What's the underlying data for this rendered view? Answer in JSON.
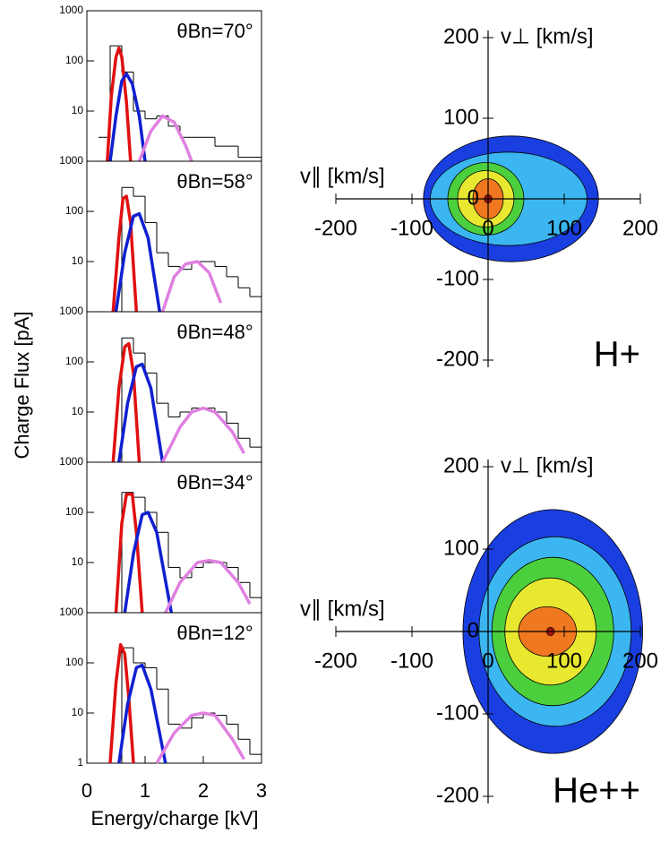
{
  "chart_data": [
    {
      "type": "line",
      "title": "θBn=70°",
      "ylabel": "Charge Flux [pA]",
      "log_y": true,
      "xlim": [
        0,
        3
      ],
      "ylim": [
        1,
        1000
      ],
      "yticks": [
        10,
        100,
        1000
      ],
      "series": [
        {
          "style": "step",
          "color": "#000000",
          "bins": [
            0.2,
            0.4,
            0.6,
            0.8,
            1.0,
            1.2,
            1.4,
            1.6,
            1.8,
            2.0,
            2.2,
            2.4,
            2.6,
            2.8,
            3.0
          ],
          "values": [
            3,
            200,
            60,
            10,
            7,
            8,
            5,
            3,
            3,
            3,
            2,
            2,
            1.2,
            1.2
          ]
        },
        {
          "color": "#e01010",
          "x": [
            0.35,
            0.42,
            0.5,
            0.55,
            0.6,
            0.68,
            0.75
          ],
          "values": [
            1,
            20,
            120,
            180,
            120,
            15,
            1
          ]
        },
        {
          "color": "#1020d0",
          "x": [
            0.4,
            0.5,
            0.6,
            0.68,
            0.78,
            0.9,
            1.0
          ],
          "values": [
            1,
            8,
            40,
            55,
            35,
            8,
            1
          ]
        },
        {
          "color": "#e080e0",
          "x": [
            0.9,
            1.1,
            1.3,
            1.5,
            1.7,
            1.8
          ],
          "values": [
            1,
            4,
            8,
            6,
            2,
            1
          ]
        }
      ]
    },
    {
      "type": "line",
      "title": "θBn=58°",
      "log_y": true,
      "xlim": [
        0,
        3
      ],
      "ylim": [
        1,
        1000
      ],
      "yticks": [
        10,
        100,
        1000
      ],
      "series": [
        {
          "style": "step",
          "color": "#000000",
          "bins": [
            0.2,
            0.4,
            0.6,
            0.8,
            1.0,
            1.2,
            1.4,
            1.6,
            1.8,
            2.0,
            2.2,
            2.4,
            2.6,
            2.8,
            3.0
          ],
          "values": [
            1,
            1,
            300,
            200,
            60,
            15,
            8,
            7,
            10,
            10,
            8,
            5,
            3,
            2
          ]
        },
        {
          "color": "#e01010",
          "x": [
            0.45,
            0.55,
            0.62,
            0.68,
            0.75,
            0.85
          ],
          "values": [
            1,
            30,
            180,
            200,
            60,
            1
          ]
        },
        {
          "color": "#1020d0",
          "x": [
            0.5,
            0.65,
            0.8,
            0.9,
            1.05,
            1.25
          ],
          "values": [
            1,
            15,
            80,
            90,
            30,
            1
          ]
        },
        {
          "color": "#e080e0",
          "x": [
            1.3,
            1.5,
            1.7,
            1.9,
            2.1,
            2.3
          ],
          "values": [
            1,
            5,
            9,
            10,
            6,
            1.5
          ]
        }
      ]
    },
    {
      "type": "line",
      "title": "θBn=48°",
      "log_y": true,
      "xlim": [
        0,
        3
      ],
      "ylim": [
        1,
        1000
      ],
      "yticks": [
        10,
        100,
        1000
      ],
      "series": [
        {
          "style": "step",
          "color": "#000000",
          "bins": [
            0.2,
            0.4,
            0.6,
            0.8,
            1.0,
            1.2,
            1.4,
            1.6,
            1.8,
            2.0,
            2.2,
            2.4,
            2.6,
            2.8,
            3.0
          ],
          "values": [
            1,
            1,
            300,
            150,
            60,
            15,
            8,
            10,
            12,
            12,
            10,
            6,
            3,
            2
          ]
        },
        {
          "color": "#e01010",
          "x": [
            0.45,
            0.55,
            0.65,
            0.72,
            0.8,
            0.9
          ],
          "values": [
            1,
            30,
            200,
            230,
            60,
            1
          ]
        },
        {
          "color": "#1020d0",
          "x": [
            0.55,
            0.7,
            0.85,
            0.95,
            1.1,
            1.3
          ],
          "values": [
            1,
            15,
            80,
            90,
            30,
            1
          ]
        },
        {
          "color": "#e080e0",
          "x": [
            1.3,
            1.6,
            1.8,
            2.0,
            2.2,
            2.5,
            2.7
          ],
          "values": [
            1,
            5,
            10,
            12,
            10,
            4,
            1.5
          ]
        }
      ]
    },
    {
      "type": "line",
      "title": "θBn=34°",
      "log_y": true,
      "xlim": [
        0,
        3
      ],
      "ylim": [
        1,
        1000
      ],
      "yticks": [
        10,
        100,
        1000
      ],
      "series": [
        {
          "style": "step",
          "color": "#000000",
          "bins": [
            0.2,
            0.4,
            0.6,
            0.8,
            1.0,
            1.2,
            1.4,
            1.6,
            1.8,
            2.0,
            2.2,
            2.4,
            2.6,
            2.8,
            3.0
          ],
          "values": [
            1,
            1,
            250,
            200,
            100,
            40,
            8,
            5,
            8,
            10,
            10,
            8,
            4,
            2
          ]
        },
        {
          "color": "#e01010",
          "x": [
            0.5,
            0.6,
            0.68,
            0.78,
            0.85,
            0.95
          ],
          "values": [
            1,
            60,
            230,
            230,
            40,
            1
          ]
        },
        {
          "color": "#1020d0",
          "x": [
            0.65,
            0.8,
            0.95,
            1.05,
            1.2,
            1.45
          ],
          "values": [
            1,
            15,
            90,
            100,
            40,
            1
          ]
        },
        {
          "color": "#e080e0",
          "x": [
            1.35,
            1.6,
            1.9,
            2.1,
            2.3,
            2.6,
            2.8
          ],
          "values": [
            1,
            4,
            10,
            11,
            10,
            4,
            1.5
          ]
        }
      ]
    },
    {
      "type": "line",
      "title": "θBn=12°",
      "xlabel": "Energy/charge [kV]",
      "log_y": true,
      "xlim": [
        0,
        3
      ],
      "ylim": [
        1,
        1000
      ],
      "yticks": [
        1,
        10,
        100,
        1000
      ],
      "xticks": [
        0,
        1,
        2,
        3
      ],
      "series": [
        {
          "style": "step",
          "color": "#000000",
          "bins": [
            0.2,
            0.4,
            0.6,
            0.8,
            1.0,
            1.2,
            1.4,
            1.6,
            1.8,
            2.0,
            2.2,
            2.4,
            2.6,
            2.8,
            3.0
          ],
          "values": [
            1,
            1,
            200,
            100,
            80,
            30,
            6,
            5,
            8,
            10,
            9,
            6,
            3,
            1.5
          ]
        },
        {
          "color": "#e01010",
          "x": [
            0.4,
            0.5,
            0.58,
            0.65,
            0.72,
            0.8
          ],
          "values": [
            1,
            40,
            230,
            150,
            20,
            1
          ]
        },
        {
          "color": "#1020d0",
          "x": [
            0.55,
            0.7,
            0.85,
            0.95,
            1.1,
            1.35
          ],
          "values": [
            1,
            15,
            80,
            90,
            30,
            1
          ]
        },
        {
          "color": "#e080e0",
          "x": [
            1.2,
            1.5,
            1.8,
            2.0,
            2.2,
            2.5,
            2.7
          ],
          "values": [
            1,
            4,
            9,
            10,
            9,
            3,
            1.2
          ]
        }
      ]
    },
    {
      "type": "contour",
      "title": "H+",
      "xlabel": "v∥ [km/s]",
      "ylabel": "v⊥ [km/s]",
      "xlim": [
        -200,
        200
      ],
      "ylim": [
        -200,
        200
      ],
      "xticks": [
        -200,
        -100,
        0,
        100,
        200
      ],
      "yticks": [
        -200,
        -100,
        0,
        100,
        200
      ],
      "levels": [
        {
          "color": "#1a3fe0",
          "center": [
            30,
            0
          ],
          "radius": [
            115,
            78
          ]
        },
        {
          "color": "#3cb6f0",
          "center": [
            27,
            0
          ],
          "radius": [
            103,
            58
          ]
        },
        {
          "color": "#4ccf3c",
          "center": [
            -3,
            0
          ],
          "radius": [
            50,
            45
          ]
        },
        {
          "color": "#e8e830",
          "center": [
            -3,
            0
          ],
          "radius": [
            37,
            35
          ]
        },
        {
          "color": "#f07820",
          "center": [
            0,
            0
          ],
          "radius": [
            20,
            25
          ]
        },
        {
          "color": "#b01010",
          "center": [
            0,
            0
          ],
          "radius": [
            5,
            5
          ]
        }
      ]
    },
    {
      "type": "contour",
      "title": "He++",
      "xlabel": "v∥ [km/s]",
      "ylabel": "v⊥ [km/s]",
      "xlim": [
        -200,
        200
      ],
      "ylim": [
        -200,
        200
      ],
      "xticks": [
        -200,
        -100,
        0,
        100,
        200
      ],
      "yticks": [
        -200,
        -100,
        0,
        100,
        200
      ],
      "levels": [
        {
          "color": "#1a3fe0",
          "center": [
            85,
            0
          ],
          "radius": [
            118,
            148
          ]
        },
        {
          "color": "#3cb6f0",
          "center": [
            88,
            0
          ],
          "radius": [
            100,
            115
          ]
        },
        {
          "color": "#4ccf3c",
          "center": [
            85,
            0
          ],
          "radius": [
            80,
            90
          ]
        },
        {
          "color": "#e8e830",
          "center": [
            82,
            0
          ],
          "radius": [
            60,
            65
          ]
        },
        {
          "color": "#f07820",
          "center": [
            78,
            0
          ],
          "radius": [
            38,
            30
          ]
        },
        {
          "color": "#b01010",
          "center": [
            82,
            0
          ],
          "radius": [
            5,
            5
          ]
        }
      ]
    }
  ]
}
